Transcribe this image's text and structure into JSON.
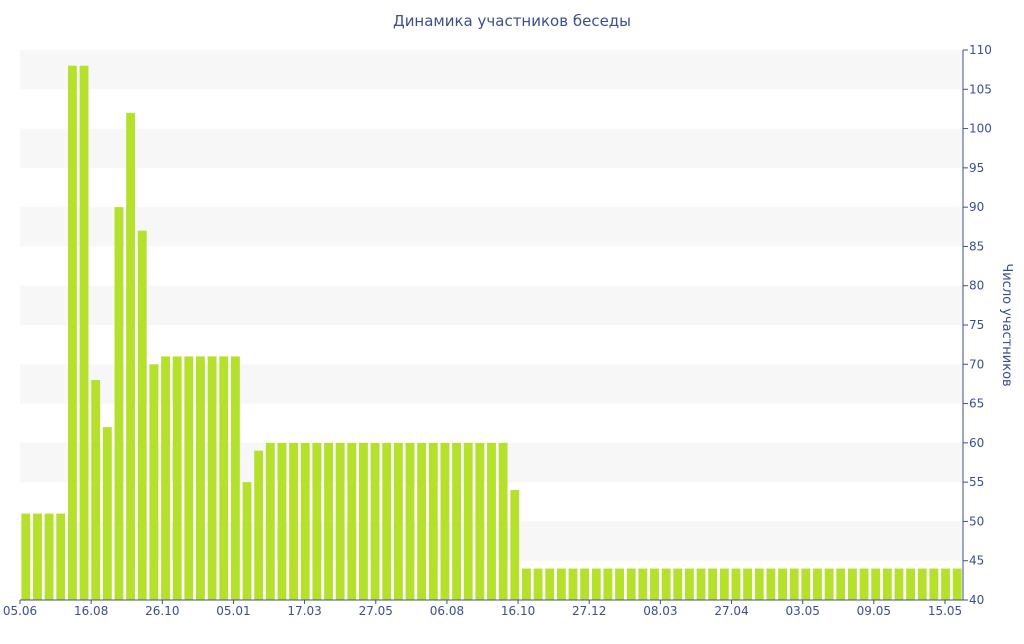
{
  "chart_data": {
    "type": "bar",
    "title": "Динамика участников беседы",
    "ylabel": "Число участников",
    "xlabel": "",
    "ylim": [
      40,
      110
    ],
    "y_ticks": [
      40,
      45,
      50,
      55,
      60,
      65,
      70,
      75,
      80,
      85,
      90,
      95,
      100,
      105,
      110
    ],
    "x_tick_labels": [
      "05.06",
      "16.08",
      "26.10",
      "05.01",
      "17.03",
      "27.05",
      "06.08",
      "16.10",
      "27.12",
      "08.03",
      "27.04",
      "03.05",
      "09.05",
      "15.05"
    ],
    "values": [
      51,
      51,
      51,
      51,
      108,
      108,
      68,
      62,
      90,
      102,
      87,
      70,
      71,
      71,
      71,
      71,
      71,
      71,
      71,
      55,
      59,
      60,
      60,
      60,
      60,
      60,
      60,
      60,
      60,
      60,
      60,
      60,
      60,
      60,
      60,
      60,
      60,
      60,
      60,
      60,
      60,
      60,
      54,
      44,
      44,
      44,
      44,
      44,
      44,
      44,
      44,
      44,
      44,
      44,
      44,
      44,
      44,
      44,
      44,
      44,
      44,
      44,
      44,
      44,
      44,
      44,
      44,
      44,
      44,
      44,
      44,
      44,
      44,
      44,
      44,
      44,
      44,
      44,
      44,
      44,
      44
    ],
    "grid": true,
    "y_axis_side": "right",
    "bar_color": "#b5e02b",
    "band_color": "#f7f7f7",
    "axis_color": "#3b4f8c"
  }
}
